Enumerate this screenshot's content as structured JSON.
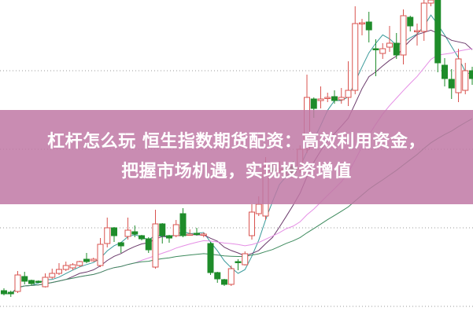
{
  "banner": {
    "line1": "杠杆怎么玩 恒生指数期货配资：高效利用资金，",
    "line2": "把握市场机遇，实现投资增值"
  },
  "chart_data": {
    "type": "candlestick",
    "title": "",
    "xlabel": "",
    "ylabel": "",
    "grid": "horizontal dotted",
    "gridlines": [
      10,
      110,
      210,
      310
    ],
    "ylim": [
      0,
      401
    ],
    "up_color": "#d9534f",
    "down_color": "#1e8c2a",
    "ma_colors": [
      "#3a9a9a",
      "#6b3a6b",
      "#e58ee5",
      "#3d8a5d"
    ],
    "ma_periods": [
      5,
      10,
      20,
      40
    ],
    "candles_ohlc": [
      [
        30,
        26,
        33,
        24
      ],
      [
        28,
        26,
        30,
        22
      ],
      [
        29,
        50,
        55,
        27
      ],
      [
        48,
        42,
        54,
        38
      ],
      [
        43,
        39,
        44,
        37
      ],
      [
        42,
        41,
        43,
        40
      ],
      [
        35,
        47,
        52,
        34
      ],
      [
        47,
        52,
        58,
        45
      ],
      [
        52,
        57,
        65,
        50
      ],
      [
        57,
        62,
        67,
        55
      ],
      [
        59,
        63,
        65,
        56
      ],
      [
        62,
        67,
        68,
        60
      ],
      [
        70,
        67,
        78,
        65
      ],
      [
        68,
        70,
        72,
        67
      ],
      [
        62,
        89,
        97,
        60
      ],
      [
        90,
        110,
        123,
        85
      ],
      [
        110,
        100,
        111,
        92
      ],
      [
        91,
        87,
        92,
        78
      ],
      [
        99,
        107,
        123,
        95
      ],
      [
        105,
        102,
        113,
        98
      ],
      [
        100,
        96,
        101,
        94
      ],
      [
        96,
        82,
        98,
        78
      ],
      [
        60,
        115,
        133,
        58
      ],
      [
        115,
        100,
        116,
        90
      ],
      [
        100,
        97,
        101,
        91
      ],
      [
        100,
        114,
        120,
        98
      ],
      [
        128,
        100,
        135,
        98
      ],
      [
        101,
        102,
        108,
        100
      ],
      [
        103,
        102,
        110,
        100
      ],
      [
        101,
        102,
        104,
        98
      ],
      [
        90,
        53,
        92,
        50
      ],
      [
        53,
        45,
        54,
        40
      ],
      [
        44,
        38,
        45,
        36
      ],
      [
        38,
        58,
        62,
        36
      ],
      [
        67,
        66,
        70,
        56
      ],
      [
        63,
        77,
        80,
        62
      ],
      [
        100,
        130,
        140,
        95
      ],
      [
        128,
        140,
        150,
        125
      ],
      [
        125,
        188,
        200,
        120
      ],
      [
        186,
        182,
        192,
        178
      ],
      [
        183,
        185,
        195,
        180
      ],
      [
        186,
        183,
        190,
        178
      ],
      [
        188,
        180,
        195,
        176
      ],
      [
        185,
        210,
        215,
        180
      ],
      [
        210,
        276,
        305,
        205
      ],
      [
        274,
        262,
        276,
        250
      ],
      [
        272,
        274,
        290,
        262
      ],
      [
        275,
        276,
        282,
        270
      ],
      [
        277,
        272,
        285,
        268
      ],
      [
        273,
        276,
        288,
        268
      ],
      [
        276,
        285,
        322,
        265
      ],
      [
        285,
        370,
        392,
        280
      ],
      [
        370,
        371,
        376,
        355
      ],
      [
        372,
        362,
        385,
        346
      ],
      [
        338,
        337,
        350,
        303
      ],
      [
        332,
        338,
        345,
        325
      ],
      [
        340,
        345,
        367,
        334
      ],
      [
        345,
        330,
        358,
        325
      ],
      [
        330,
        380,
        388,
        318
      ],
      [
        378,
        367,
        380,
        360
      ],
      [
        360,
        361,
        370,
        342
      ],
      [
        360,
        396,
        400,
        348
      ],
      [
        396,
        400,
        401,
        392
      ],
      [
        401,
        320,
        401,
        308
      ],
      [
        317,
        300,
        326,
        290
      ],
      [
        299,
        288,
        312,
        274
      ],
      [
        282,
        325,
        338,
        270
      ],
      [
        285,
        310,
        320,
        280
      ],
      [
        310,
        300,
        315,
        292
      ]
    ]
  }
}
